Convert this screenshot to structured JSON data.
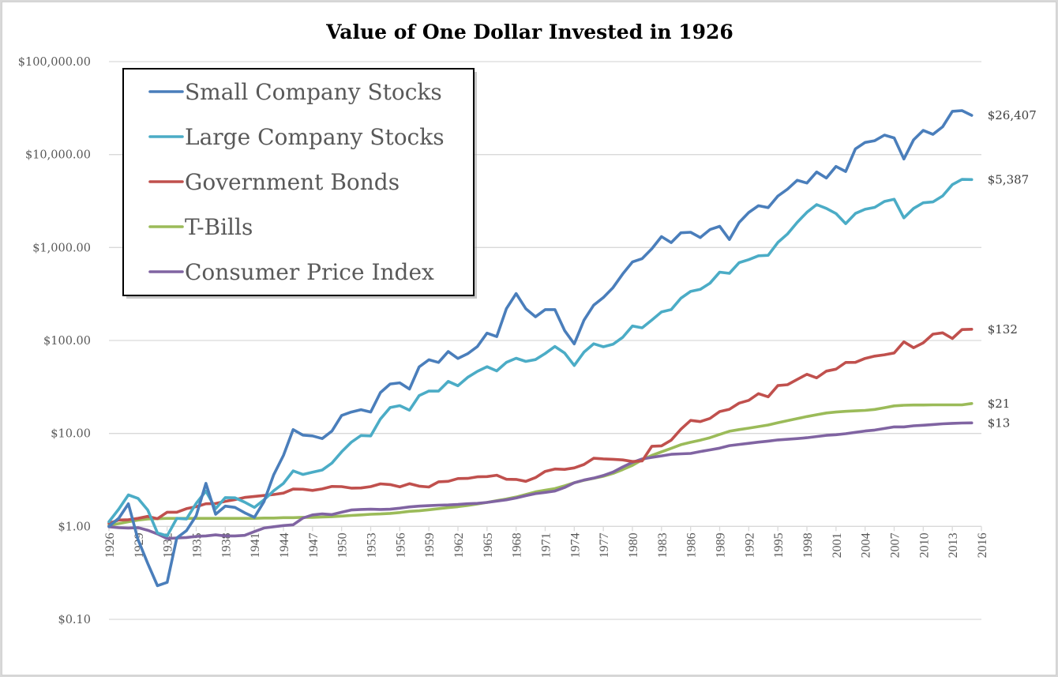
{
  "chart_data": {
    "type": "line",
    "title": "Value of One Dollar Invested in 1926",
    "xlabel": "",
    "ylabel": "",
    "yscale": "log",
    "ylim": [
      0.1,
      100000
    ],
    "xlim": [
      1926,
      2016
    ],
    "grid": true,
    "legend_position": "top-left",
    "y_ticks": [
      {
        "value": 100000,
        "label": "$100,000.00"
      },
      {
        "value": 10000,
        "label": "$10,000.00"
      },
      {
        "value": 1000,
        "label": "$1,000.00"
      },
      {
        "value": 100,
        "label": "$100.00"
      },
      {
        "value": 10,
        "label": "$10.00"
      },
      {
        "value": 1,
        "label": "$1.00"
      },
      {
        "value": 0.1,
        "label": "$0.10"
      }
    ],
    "x_tick_labels": [
      "1926",
      "1929",
      "1932",
      "1935",
      "1938",
      "1941",
      "1944",
      "1947",
      "1950",
      "1953",
      "1956",
      "1959",
      "1962",
      "1965",
      "1968",
      "1971",
      "1974",
      "1977",
      "1980",
      "1983",
      "1986",
      "1989",
      "1992",
      "1995",
      "1998",
      "2001",
      "2004",
      "2007",
      "2010",
      "2013",
      "2016"
    ],
    "x_start": 1926,
    "series": [
      {
        "name": "Small Company Stocks",
        "color": "#4a7ebb",
        "end_label": "$26,407",
        "values": [
          1.0,
          1.22,
          1.75,
          0.72,
          0.4,
          0.23,
          0.25,
          0.75,
          0.9,
          1.3,
          2.9,
          1.35,
          1.65,
          1.6,
          1.4,
          1.25,
          1.85,
          3.6,
          5.8,
          11.0,
          9.6,
          9.4,
          8.8,
          10.6,
          15.6,
          17.0,
          18.0,
          17.0,
          27.5,
          34.0,
          35.0,
          30.0,
          52.0,
          62.0,
          58.0,
          76.0,
          64.0,
          72.0,
          86.0,
          120.0,
          110.0,
          220.0,
          320.0,
          220.0,
          180.0,
          215.0,
          215.0,
          128.0,
          92.0,
          165.0,
          240.0,
          290.0,
          370.0,
          520.0,
          700.0,
          760.0,
          970.0,
          1310.0,
          1130.0,
          1440.0,
          1460.0,
          1280.0,
          1560.0,
          1690.0,
          1220.0,
          1860.0,
          2380.0,
          2820.0,
          2690.0,
          3580.0,
          4250.0,
          5290.0,
          4940.0,
          6500.0,
          5590.0,
          7450.0,
          6580.0,
          11500.0,
          13500.0,
          14100.0,
          16200.0,
          15100.0,
          8950.0,
          14400.0,
          18200.0,
          16500.0,
          19900.0,
          29200.0,
          29700.0,
          26407.0
        ]
      },
      {
        "name": "Large Company Stocks",
        "color": "#4bacc6",
        "end_label": "$5,387",
        "values": [
          1.12,
          1.53,
          2.18,
          2.0,
          1.5,
          0.85,
          0.79,
          1.22,
          1.2,
          1.77,
          2.4,
          1.55,
          2.04,
          2.03,
          1.82,
          1.6,
          1.93,
          2.42,
          2.9,
          3.95,
          3.62,
          3.83,
          4.04,
          4.8,
          6.35,
          8.05,
          9.5,
          9.4,
          14.3,
          19.0,
          19.9,
          17.8,
          25.5,
          28.6,
          28.5,
          36.3,
          32.6,
          40.1,
          46.5,
          52.2,
          47.1,
          58.2,
          64.4,
          59.5,
          62.3,
          72.4,
          86.1,
          73.2,
          53.8,
          74.8,
          92.1,
          85.5,
          91.1,
          108.1,
          143.0,
          136.8,
          165.9,
          202.8,
          214.8,
          284.7,
          336.8,
          355.0,
          413.5,
          543.6,
          527.6,
          687.5,
          740.6,
          814.6,
          824.8,
          1133.9,
          1398.8,
          1863.1,
          2393.8,
          2896.9,
          2633.6,
          2320.1,
          1807.3,
          2327.1,
          2580.4,
          2706.6,
          3134.3,
          3306.3,
          2083.3,
          2634.6,
          3031.2,
          3095.1,
          3589.4,
          4751.3,
          5400.8,
          5387.0
        ]
      },
      {
        "name": "Government Bonds",
        "color": "#c0504d",
        "end_label": "$132",
        "values": [
          1.08,
          1.17,
          1.18,
          1.22,
          1.28,
          1.21,
          1.42,
          1.42,
          1.55,
          1.63,
          1.75,
          1.76,
          1.86,
          1.94,
          2.05,
          2.1,
          2.15,
          2.2,
          2.28,
          2.52,
          2.51,
          2.44,
          2.53,
          2.69,
          2.68,
          2.58,
          2.59,
          2.68,
          2.87,
          2.82,
          2.66,
          2.88,
          2.71,
          2.65,
          3.02,
          3.05,
          3.27,
          3.28,
          3.41,
          3.43,
          3.55,
          3.21,
          3.2,
          3.05,
          3.35,
          3.91,
          4.14,
          4.1,
          4.26,
          4.63,
          5.41,
          5.32,
          5.27,
          5.19,
          4.99,
          5.06,
          7.28,
          7.35,
          8.46,
          11.1,
          13.8,
          13.4,
          14.5,
          17.2,
          18.2,
          21.2,
          22.7,
          26.8,
          24.8,
          32.7,
          33.4,
          38.1,
          43.3,
          39.6,
          46.8,
          49.1,
          58.0,
          58.2,
          64.1,
          67.9,
          70.2,
          73.4,
          96.8,
          83.6,
          94.3,
          117.0,
          121.0,
          105.0,
          131.0,
          132.0
        ]
      },
      {
        "name": "T-Bills",
        "color": "#9bbb59",
        "end_label": "$21",
        "values": [
          1.03,
          1.07,
          1.12,
          1.17,
          1.2,
          1.21,
          1.22,
          1.22,
          1.22,
          1.22,
          1.22,
          1.22,
          1.22,
          1.22,
          1.22,
          1.22,
          1.23,
          1.23,
          1.24,
          1.24,
          1.25,
          1.25,
          1.26,
          1.27,
          1.29,
          1.31,
          1.33,
          1.35,
          1.36,
          1.38,
          1.41,
          1.45,
          1.47,
          1.51,
          1.55,
          1.59,
          1.63,
          1.68,
          1.74,
          1.81,
          1.89,
          1.97,
          2.07,
          2.2,
          2.35,
          2.45,
          2.55,
          2.73,
          2.95,
          3.13,
          3.29,
          3.46,
          3.71,
          4.09,
          4.53,
          5.2,
          5.8,
          6.34,
          6.9,
          7.57,
          8.03,
          8.47,
          8.99,
          9.76,
          10.55,
          11.0,
          11.4,
          11.84,
          12.33,
          13.05,
          13.72,
          14.45,
          15.2,
          15.9,
          16.6,
          17.0,
          17.3,
          17.5,
          17.7,
          18.1,
          18.9,
          19.8,
          20.1,
          20.2,
          20.2,
          20.3,
          20.3,
          20.3,
          20.3,
          21.0
        ]
      },
      {
        "name": "Consumer Price Index",
        "color": "#8064a2",
        "end_label": "$13",
        "values": [
          0.99,
          0.97,
          0.96,
          0.97,
          0.91,
          0.83,
          0.74,
          0.75,
          0.76,
          0.78,
          0.79,
          0.81,
          0.79,
          0.79,
          0.8,
          0.88,
          0.96,
          0.99,
          1.02,
          1.04,
          1.23,
          1.33,
          1.36,
          1.34,
          1.42,
          1.5,
          1.52,
          1.53,
          1.52,
          1.53,
          1.57,
          1.62,
          1.65,
          1.67,
          1.69,
          1.7,
          1.72,
          1.75,
          1.77,
          1.81,
          1.87,
          1.93,
          2.02,
          2.14,
          2.25,
          2.32,
          2.4,
          2.62,
          2.95,
          3.15,
          3.31,
          3.53,
          3.84,
          4.36,
          4.88,
          5.31,
          5.52,
          5.73,
          5.96,
          6.03,
          6.09,
          6.38,
          6.65,
          6.95,
          7.39,
          7.61,
          7.83,
          8.06,
          8.26,
          8.51,
          8.65,
          8.8,
          9.0,
          9.26,
          9.53,
          9.69,
          9.94,
          10.27,
          10.62,
          10.88,
          11.3,
          11.75,
          11.75,
          12.08,
          12.26,
          12.47,
          12.68,
          12.85,
          12.94,
          13.0
        ]
      }
    ]
  }
}
